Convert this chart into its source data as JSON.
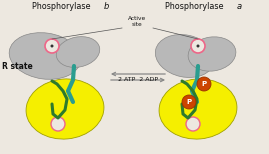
{
  "bg_color": "#ede8e0",
  "title_b": "Phosphorylase ",
  "title_b_italic": "b",
  "title_a": "Phosphorylase ",
  "title_a_italic": "a",
  "r_state_label": "R state",
  "active_site_label": "Active\nsite",
  "reaction_label": "2 ATP  2 ADP",
  "gray_color": "#b8b8b8",
  "gray_edge": "#888888",
  "yellow_color": "#f5ef00",
  "yellow_edge": "#a0a000",
  "teal_color": "#2a9d8f",
  "green_color": "#2d7a2d",
  "pink_circle_color": "#ee6688",
  "phospho_color": "#cc4400",
  "phospho_edge": "#993300",
  "text_color": "#111111",
  "arrow_color": "#888888",
  "line_color": "#555555"
}
